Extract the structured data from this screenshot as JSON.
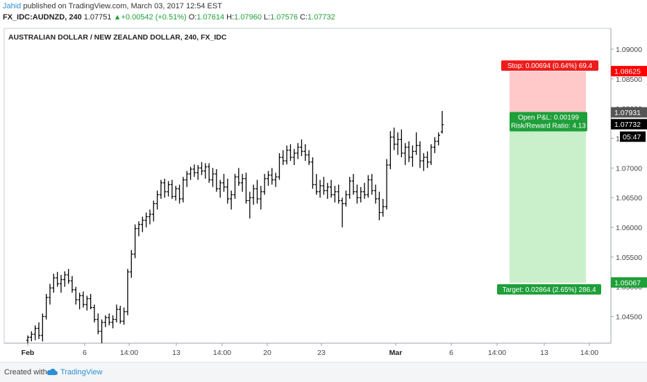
{
  "header": {
    "author": "Jahid",
    "published_text": "published on TradingView.com, March 03, 2017 12:54 EST",
    "symbol": "FX_IDC:AUDNZD, 240",
    "last": "1.07751",
    "change_arrow": "▲",
    "change": "+0.00542 (+0.51%)",
    "o_label": "O:",
    "o_value": "1.07614",
    "h_label": "H:",
    "h_value": "1.07960",
    "l_label": "L:",
    "l_value": "1.07576",
    "c_label": "C:",
    "c_value": "1.07732"
  },
  "footer": {
    "created_with": "Created with",
    "brand": "TradingView"
  },
  "chart_data": {
    "type": "ohlc-bar",
    "title": "AUSTRALIAN DOLLAR / NEW ZEALAND DOLLAR, 240, FX_IDC",
    "ylim": [
      1.0405,
      1.0935
    ],
    "y_ticks": [
      "1.04500",
      "1.05000",
      "1.05500",
      "1.06000",
      "1.06500",
      "1.07000",
      "1.07500",
      "1.08000",
      "1.08500",
      "1.09000"
    ],
    "y_tick_values": [
      1.045,
      1.05,
      1.055,
      1.06,
      1.065,
      1.07,
      1.075,
      1.08,
      1.085,
      1.09
    ],
    "x_ticks": [
      "Feb",
      "6",
      "14:00",
      "13",
      "14:00",
      "20",
      "23",
      "Mar",
      "6",
      "14:00",
      "13",
      "14:00"
    ],
    "price_labels": {
      "stop": {
        "text": "1.08625",
        "value": 1.08625,
        "color": "#ff0000"
      },
      "entry": {
        "text": "1.07931",
        "value": 1.07931,
        "color": "#555555"
      },
      "last": {
        "text": "1.07732",
        "value": 1.07732,
        "color": "#000000"
      },
      "countdown": {
        "text": "05:47"
      },
      "target": {
        "text": "1.05067",
        "value": 1.05067,
        "color": "#1e9f39"
      }
    },
    "position": {
      "stop_label": "Stop: 0.00694 (0.64%) 69.4",
      "pnl_label": "Open P&L: 0.00199",
      "rr_label": "Risk/Reward Ratio: 4.13",
      "target_label": "Target: 0.02864 (2.65%) 286.4",
      "stop_price": 1.08625,
      "entry_price": 1.07931,
      "target_price": 1.05067
    },
    "colors": {
      "bars": "#000000",
      "risk_zone": "#ffc9c9",
      "reward_zone": "#c9efcb"
    },
    "ohlc": [
      [
        1.041,
        1.0418,
        1.0405,
        1.0415
      ],
      [
        1.0415,
        1.0425,
        1.0408,
        1.042
      ],
      [
        1.042,
        1.0435,
        1.041,
        1.043
      ],
      [
        1.043,
        1.044,
        1.0412,
        1.0418
      ],
      [
        1.0418,
        1.0455,
        1.0408,
        1.045
      ],
      [
        1.045,
        1.0488,
        1.0445,
        1.0482
      ],
      [
        1.0482,
        1.0505,
        1.047,
        1.0498
      ],
      [
        1.0498,
        1.0522,
        1.049,
        1.0515
      ],
      [
        1.0515,
        1.0525,
        1.05,
        1.0505
      ],
      [
        1.0505,
        1.052,
        1.049,
        1.0512
      ],
      [
        1.0512,
        1.0526,
        1.05,
        1.052
      ],
      [
        1.052,
        1.053,
        1.0505,
        1.051
      ],
      [
        1.051,
        1.0518,
        1.049,
        1.0495
      ],
      [
        1.0495,
        1.05,
        1.047,
        1.0478
      ],
      [
        1.0478,
        1.049,
        1.0462,
        1.0485
      ],
      [
        1.0485,
        1.0492,
        1.0465,
        1.047
      ],
      [
        1.047,
        1.0485,
        1.046,
        1.048
      ],
      [
        1.048,
        1.0488,
        1.0462,
        1.0465
      ],
      [
        1.0465,
        1.047,
        1.044,
        1.0445
      ],
      [
        1.0445,
        1.0455,
        1.042,
        1.0425
      ],
      [
        1.0425,
        1.0445,
        1.0405,
        1.044
      ],
      [
        1.044,
        1.0452,
        1.0432,
        1.0448
      ],
      [
        1.0448,
        1.0455,
        1.0435,
        1.044
      ],
      [
        1.044,
        1.0452,
        1.043,
        1.0445
      ],
      [
        1.0445,
        1.047,
        1.044,
        1.0462
      ],
      [
        1.0462,
        1.0468,
        1.0438,
        1.0442
      ],
      [
        1.0442,
        1.0465,
        1.0436,
        1.0458
      ],
      [
        1.0458,
        1.053,
        1.0452,
        1.0525
      ],
      [
        1.0525,
        1.0562,
        1.0515,
        1.0555
      ],
      [
        1.0555,
        1.0605,
        1.0548,
        1.0598
      ],
      [
        1.0598,
        1.061,
        1.0585,
        1.0605
      ],
      [
        1.0605,
        1.0618,
        1.0592,
        1.0612
      ],
      [
        1.0612,
        1.0625,
        1.06,
        1.0618
      ],
      [
        1.0618,
        1.063,
        1.0605,
        1.0622
      ],
      [
        1.0622,
        1.0645,
        1.061,
        1.064
      ],
      [
        1.064,
        1.0662,
        1.063,
        1.0655
      ],
      [
        1.0655,
        1.068,
        1.0648,
        1.0675
      ],
      [
        1.0675,
        1.0682,
        1.065,
        1.066
      ],
      [
        1.066,
        1.0678,
        1.0652,
        1.0672
      ],
      [
        1.0672,
        1.068,
        1.0648,
        1.0652
      ],
      [
        1.0652,
        1.067,
        1.0645,
        1.0665
      ],
      [
        1.0665,
        1.0672,
        1.064,
        1.0648
      ],
      [
        1.0648,
        1.0685,
        1.0642,
        1.068
      ],
      [
        1.068,
        1.0695,
        1.0668,
        1.069
      ],
      [
        1.069,
        1.0702,
        1.068,
        1.0698
      ],
      [
        1.0698,
        1.0706,
        1.0685,
        1.0692
      ],
      [
        1.0692,
        1.0705,
        1.068,
        1.07
      ],
      [
        1.07,
        1.071,
        1.0688,
        1.0695
      ],
      [
        1.0695,
        1.0708,
        1.0682,
        1.0702
      ],
      [
        1.0702,
        1.0708,
        1.0675,
        1.068
      ],
      [
        1.068,
        1.07,
        1.0668,
        1.069
      ],
      [
        1.069,
        1.0698,
        1.066,
        1.0665
      ],
      [
        1.0665,
        1.068,
        1.065,
        1.0675
      ],
      [
        1.0675,
        1.069,
        1.066,
        1.0668
      ],
      [
        1.0668,
        1.0682,
        1.064,
        1.0648
      ],
      [
        1.0648,
        1.0662,
        1.063,
        1.0655
      ],
      [
        1.0655,
        1.069,
        1.0648,
        1.0685
      ],
      [
        1.0685,
        1.07,
        1.067,
        1.0675
      ],
      [
        1.0675,
        1.069,
        1.066,
        1.0682
      ],
      [
        1.0682,
        1.0692,
        1.064,
        1.0645
      ],
      [
        1.0645,
        1.066,
        1.0615,
        1.065
      ],
      [
        1.065,
        1.0672,
        1.0638,
        1.0665
      ],
      [
        1.0665,
        1.068,
        1.064,
        1.0648
      ],
      [
        1.0648,
        1.067,
        1.063,
        1.066
      ],
      [
        1.066,
        1.069,
        1.0655,
        1.0682
      ],
      [
        1.0682,
        1.0695,
        1.067,
        1.0688
      ],
      [
        1.0688,
        1.07,
        1.0672,
        1.068
      ],
      [
        1.068,
        1.0692,
        1.0668,
        1.0685
      ],
      [
        1.0685,
        1.0725,
        1.068,
        1.0718
      ],
      [
        1.0718,
        1.073,
        1.0705,
        1.0712
      ],
      [
        1.0712,
        1.0738,
        1.0706,
        1.073
      ],
      [
        1.073,
        1.074,
        1.0712,
        1.0718
      ],
      [
        1.0718,
        1.0732,
        1.0705,
        1.0725
      ],
      [
        1.0725,
        1.0742,
        1.0715,
        1.0735
      ],
      [
        1.0735,
        1.0748,
        1.072,
        1.0728
      ],
      [
        1.0728,
        1.074,
        1.0712,
        1.0722
      ],
      [
        1.0722,
        1.073,
        1.0705,
        1.071
      ],
      [
        1.071,
        1.0718,
        1.0665,
        1.0672
      ],
      [
        1.0672,
        1.069,
        1.0655,
        1.066
      ],
      [
        1.066,
        1.068,
        1.065,
        1.067
      ],
      [
        1.067,
        1.0685,
        1.0655,
        1.0662
      ],
      [
        1.0662,
        1.0675,
        1.0648,
        1.0668
      ],
      [
        1.0668,
        1.068,
        1.065,
        1.0655
      ],
      [
        1.0655,
        1.067,
        1.0642,
        1.066
      ],
      [
        1.066,
        1.0672,
        1.064,
        1.0645
      ],
      [
        1.0645,
        1.065,
        1.06,
        1.064
      ],
      [
        1.064,
        1.0662,
        1.0635,
        1.0655
      ],
      [
        1.0655,
        1.0685,
        1.0648,
        1.0678
      ],
      [
        1.0678,
        1.069,
        1.0655,
        1.066
      ],
      [
        1.066,
        1.0672,
        1.064,
        1.065
      ],
      [
        1.065,
        1.0668,
        1.0642,
        1.066
      ],
      [
        1.066,
        1.0675,
        1.0648,
        1.0655
      ],
      [
        1.0655,
        1.0688,
        1.065,
        1.068
      ],
      [
        1.068,
        1.069,
        1.0655,
        1.0662
      ],
      [
        1.0662,
        1.0672,
        1.064,
        1.0648
      ],
      [
        1.0648,
        1.066,
        1.0612,
        1.0625
      ],
      [
        1.0625,
        1.0648,
        1.0618,
        1.0635
      ],
      [
        1.0635,
        1.0715,
        1.063,
        1.0705
      ],
      [
        1.0705,
        1.0762,
        1.0698,
        1.0752
      ],
      [
        1.0752,
        1.0768,
        1.073,
        1.074
      ],
      [
        1.074,
        1.076,
        1.0722,
        1.0748
      ],
      [
        1.0748,
        1.0765,
        1.0718,
        1.0725
      ],
      [
        1.0725,
        1.0742,
        1.0705,
        1.0735
      ],
      [
        1.0735,
        1.0745,
        1.071,
        1.0718
      ],
      [
        1.0718,
        1.0738,
        1.0702,
        1.0728
      ],
      [
        1.0728,
        1.076,
        1.0722,
        1.0738
      ],
      [
        1.0738,
        1.0745,
        1.07,
        1.0712
      ],
      [
        1.0712,
        1.0725,
        1.0695,
        1.0718
      ],
      [
        1.0718,
        1.0728,
        1.07,
        1.071
      ],
      [
        1.071,
        1.074,
        1.0705,
        1.0735
      ],
      [
        1.0735,
        1.0752,
        1.0725,
        1.0745
      ],
      [
        1.0745,
        1.076,
        1.0738,
        1.0755
      ],
      [
        1.0761,
        1.0796,
        1.0758,
        1.0773
      ]
    ]
  }
}
